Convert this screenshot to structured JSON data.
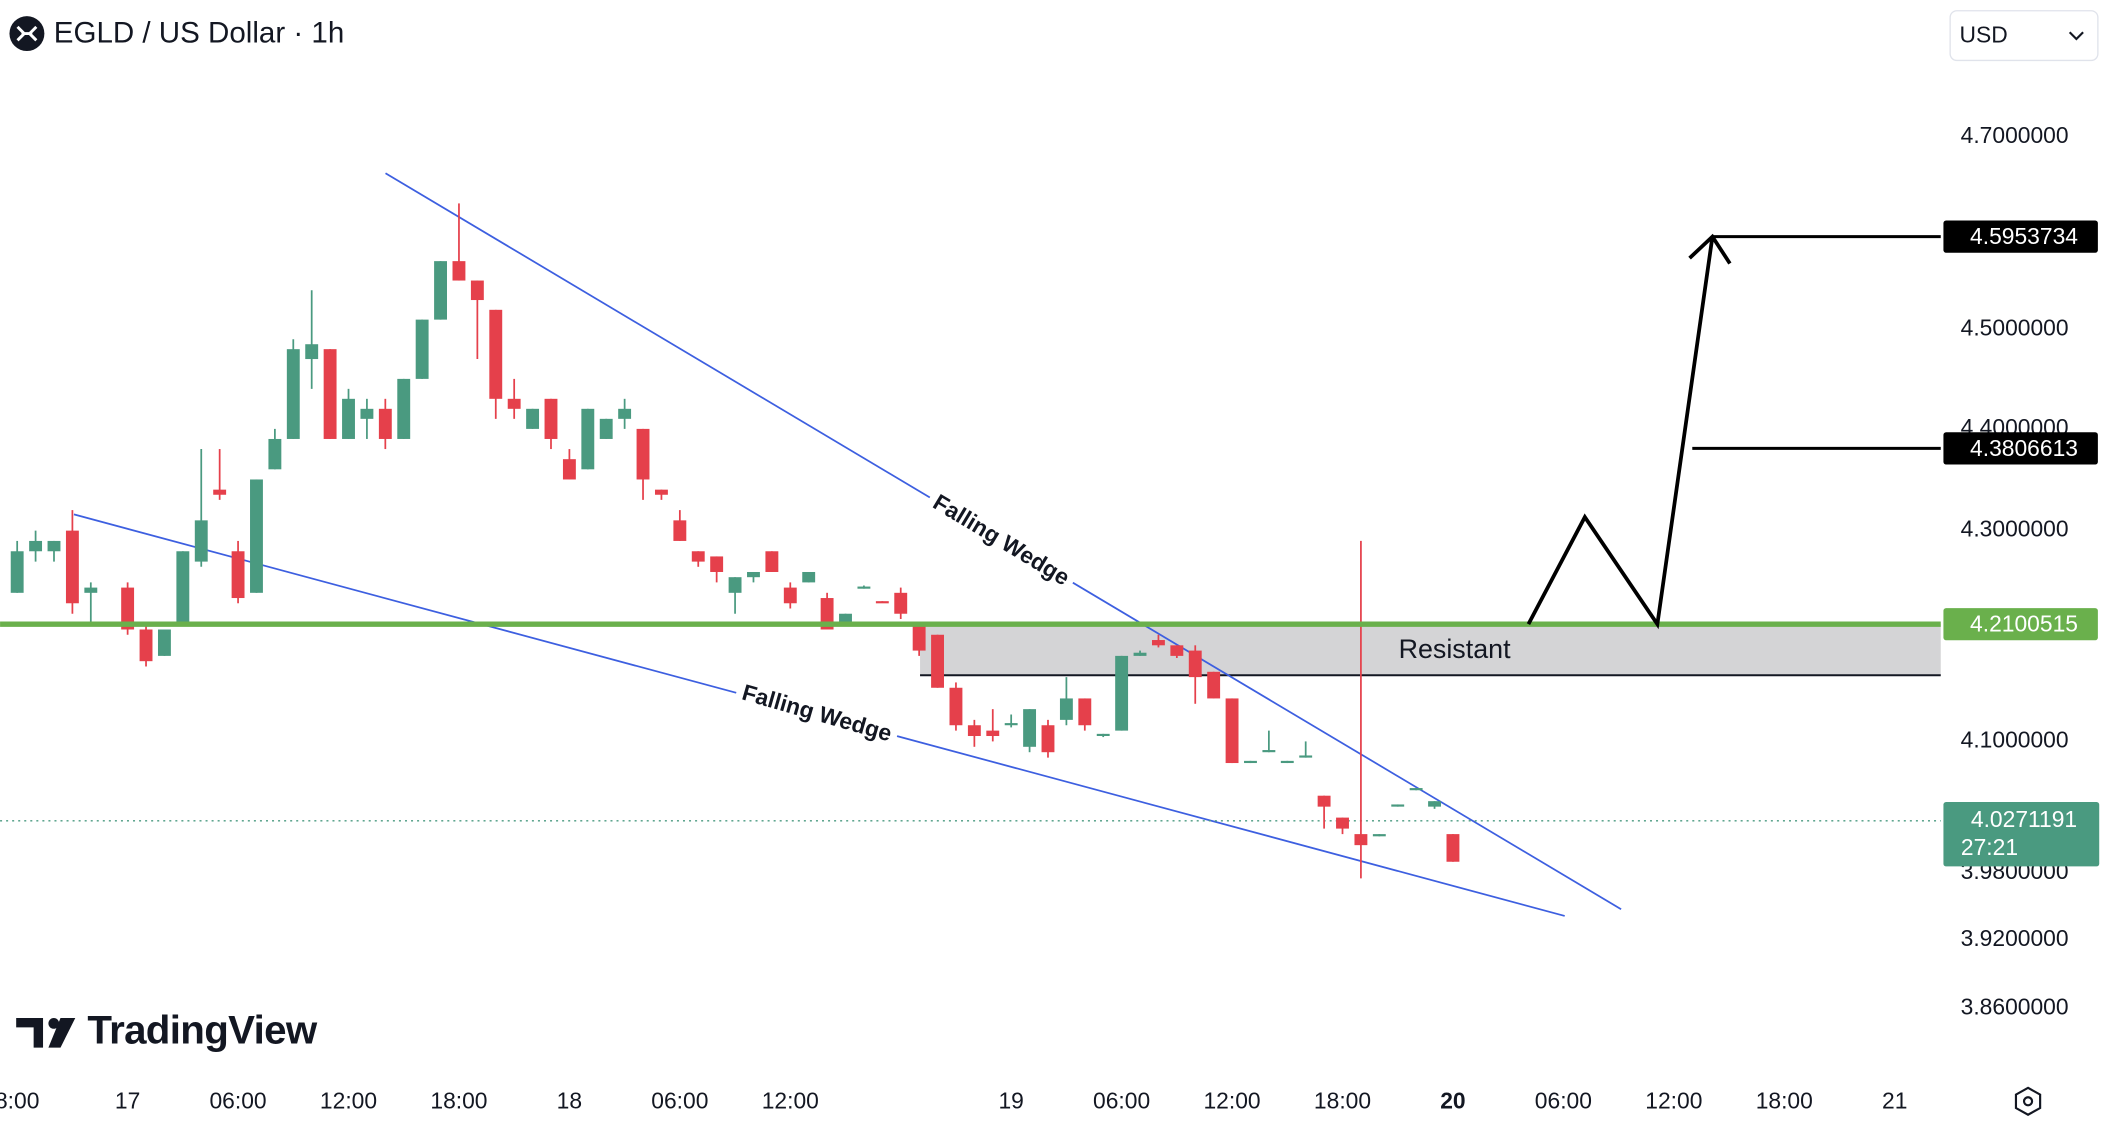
{
  "header": {
    "title": "EGLD / US Dollar · 1h",
    "currency": "USD"
  },
  "chart_data": {
    "type": "candlestick",
    "x": [
      -6,
      -5,
      -4,
      -3,
      -2,
      0,
      1,
      2,
      3,
      4,
      5,
      6,
      7,
      8,
      9,
      10,
      11,
      12,
      13,
      14,
      15,
      16,
      17,
      18,
      19,
      20,
      21,
      22,
      23,
      24,
      25,
      26,
      27,
      28,
      29,
      30,
      31,
      32,
      33,
      34,
      35,
      36,
      37,
      38,
      39,
      40,
      41,
      42,
      43,
      44,
      45,
      46,
      47,
      48,
      49,
      50,
      51,
      52,
      53,
      54,
      55,
      56,
      57,
      58,
      59,
      60,
      61,
      62,
      63,
      64,
      65,
      66,
      67,
      68,
      69,
      70,
      71,
      72
    ],
    "open": [
      4.24,
      4.28,
      4.28,
      4.3,
      4.24,
      4.245,
      4.205,
      4.18,
      4.21,
      4.27,
      4.34,
      4.28,
      4.24,
      4.36,
      4.39,
      4.47,
      4.48,
      4.39,
      4.41,
      4.42,
      4.39,
      4.45,
      4.51,
      4.57,
      4.55,
      4.52,
      4.43,
      4.4,
      4.43,
      4.37,
      4.36,
      4.39,
      4.41,
      4.4,
      4.34,
      4.31,
      4.28,
      4.275,
      4.24,
      4.255,
      4.28,
      4.245,
      4.25,
      4.235,
      4.21,
      4.245,
      4.232,
      4.24,
      4.21,
      4.2,
      4.15,
      4.115,
      4.11,
      4.115,
      4.095,
      4.115,
      4.12,
      4.14,
      4.105,
      4.11,
      4.18,
      4.195,
      4.19,
      4.185,
      4.165,
      4.14,
      4.08,
      4.09,
      4.08,
      4.085,
      4.05,
      4.03,
      4.015,
      4.013,
      4.04,
      4.055,
      4.04,
      4.015
    ],
    "high": [
      4.29,
      4.3,
      4.29,
      4.32,
      4.25,
      4.25,
      4.21,
      4.205,
      4.28,
      4.38,
      4.38,
      4.29,
      4.35,
      4.4,
      4.49,
      4.54,
      4.48,
      4.44,
      4.43,
      4.43,
      4.45,
      4.51,
      4.57,
      4.63,
      4.55,
      4.52,
      4.45,
      4.42,
      4.43,
      4.38,
      4.42,
      4.41,
      4.43,
      4.4,
      4.34,
      4.32,
      4.28,
      4.275,
      4.255,
      4.26,
      4.28,
      4.25,
      4.26,
      4.24,
      4.22,
      4.247,
      4.232,
      4.245,
      4.21,
      4.2,
      4.155,
      4.12,
      4.13,
      4.125,
      4.13,
      4.12,
      4.16,
      4.14,
      4.107,
      4.18,
      4.185,
      4.2,
      4.19,
      4.19,
      4.165,
      4.14,
      4.082,
      4.11,
      4.082,
      4.1,
      4.05,
      4.03,
      4.29,
      4.015,
      4.042,
      4.057,
      4.045,
      4.015
    ],
    "low": [
      4.24,
      4.27,
      4.27,
      4.22,
      4.21,
      4.2,
      4.17,
      4.18,
      4.21,
      4.265,
      4.33,
      4.23,
      4.24,
      4.36,
      4.39,
      4.44,
      4.39,
      4.39,
      4.39,
      4.38,
      4.39,
      4.45,
      4.51,
      4.55,
      4.47,
      4.41,
      4.41,
      4.4,
      4.38,
      4.35,
      4.36,
      4.39,
      4.4,
      4.33,
      4.33,
      4.29,
      4.265,
      4.25,
      4.22,
      4.25,
      4.26,
      4.225,
      4.25,
      4.205,
      4.21,
      4.244,
      4.231,
      4.215,
      4.18,
      4.15,
      4.11,
      4.095,
      4.1,
      4.113,
      4.09,
      4.085,
      4.115,
      4.11,
      4.104,
      4.11,
      4.18,
      4.188,
      4.178,
      4.135,
      4.14,
      4.08,
      4.08,
      4.09,
      4.08,
      4.085,
      4.02,
      4.015,
      3.975,
      4.013,
      4.04,
      4.055,
      4.038,
      3.99
    ],
    "close": [
      4.28,
      4.29,
      4.29,
      4.23,
      4.245,
      4.205,
      4.175,
      4.205,
      4.28,
      4.31,
      4.335,
      4.235,
      4.35,
      4.39,
      4.48,
      4.485,
      4.39,
      4.43,
      4.42,
      4.39,
      4.45,
      4.51,
      4.57,
      4.55,
      4.53,
      4.43,
      4.42,
      4.42,
      4.39,
      4.35,
      4.42,
      4.41,
      4.42,
      4.35,
      4.335,
      4.29,
      4.27,
      4.26,
      4.255,
      4.26,
      4.26,
      4.23,
      4.26,
      4.205,
      4.22,
      4.246,
      4.231,
      4.22,
      4.185,
      4.15,
      4.115,
      4.105,
      4.105,
      4.117,
      4.13,
      4.09,
      4.14,
      4.115,
      4.107,
      4.18,
      4.183,
      4.19,
      4.18,
      4.16,
      4.14,
      4.08,
      4.082,
      4.092,
      4.082,
      4.087,
      4.04,
      4.02,
      4.005,
      4.015,
      4.042,
      4.057,
      4.045,
      3.99
    ],
    "up_color": "#4a9a80",
    "down_color": "#e5404b",
    "xlim": [
      -6.93,
      98.5
    ],
    "xticks": [
      {
        "value": -6,
        "label": "8:00"
      },
      {
        "value": 0,
        "label": "17"
      },
      {
        "value": 6,
        "label": "06:00"
      },
      {
        "value": 12,
        "label": "12:00"
      },
      {
        "value": 18,
        "label": "18:00"
      },
      {
        "value": 24,
        "label": "18"
      },
      {
        "value": 30,
        "label": "06:00"
      },
      {
        "value": 36,
        "label": "12:00"
      },
      {
        "value": 48,
        "label": "19"
      },
      {
        "value": 54,
        "label": "06:00"
      },
      {
        "value": 60,
        "label": "12:00"
      },
      {
        "value": 66,
        "label": "18:00"
      },
      {
        "value": 72,
        "label": "20"
      },
      {
        "value": 78,
        "label": "06:00"
      },
      {
        "value": 84,
        "label": "12:00"
      },
      {
        "value": 90,
        "label": "18:00"
      },
      {
        "value": 96,
        "label": "21"
      }
    ],
    "ylim": [
      3.83,
      4.78
    ],
    "log_scale": true,
    "grid": false,
    "yticks": [
      {
        "value": 4.7,
        "label": "4.7000000"
      },
      {
        "value": 4.5,
        "label": "4.5000000"
      },
      {
        "value": 4.4,
        "label": "4.4000000"
      },
      {
        "value": 4.3,
        "label": "4.3000000"
      },
      {
        "value": 4.1,
        "label": "4.1000000"
      },
      {
        "value": 3.98,
        "label": "3.9800000"
      },
      {
        "value": 3.92,
        "label": "3.9200000"
      },
      {
        "value": 3.86,
        "label": "3.8600000"
      }
    ],
    "levels": [
      {
        "value": 4.5953734,
        "color": "#000000"
      },
      {
        "value": 4.3806613,
        "color": "#000000"
      },
      {
        "value": 4.2100515,
        "color": "#6ab04c"
      }
    ],
    "current_price": {
      "value": 4.0271191,
      "countdown": "27:21",
      "color": "#4a9a80"
    },
    "annotations": {
      "upper_wedge": "Falling Wedge",
      "lower_wedge": "Falling Wedge",
      "zone": "Resistant"
    }
  },
  "branding": "TradingView"
}
